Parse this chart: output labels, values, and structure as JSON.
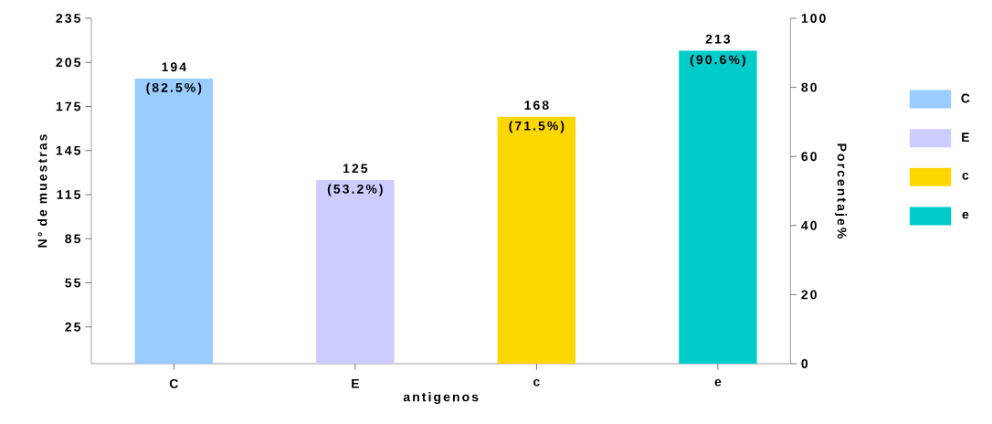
{
  "chart_data": {
    "type": "bar",
    "xlabel": "antigenos",
    "ylabel": "N° de muestras",
    "y2label": "Porcentaje%",
    "categories": [
      "C",
      "E",
      "c",
      "e"
    ],
    "stacked": true,
    "series": [
      {
        "name": "C",
        "color": "#99ccff",
        "values": [
          194,
          null,
          null,
          null
        ],
        "value_labels": [
          "194 (82.5%)",
          null,
          null,
          null
        ]
      },
      {
        "name": "E",
        "color": "#ccccff",
        "values": [
          null,
          125,
          null,
          null
        ],
        "value_labels": [
          null,
          "125 (53.2%)",
          null,
          null
        ]
      },
      {
        "name": "c",
        "color": "#ffd700",
        "values": [
          null,
          null,
          168,
          null
        ],
        "value_labels": [
          null,
          null,
          "168 (71.5%)",
          null
        ]
      },
      {
        "name": "e",
        "color": "#00cccc",
        "values": [
          null,
          null,
          null,
          213
        ],
        "value_labels": [
          null,
          null,
          null,
          "213 (90.6%)"
        ]
      }
    ],
    "ylim": [
      0,
      235
    ],
    "yticks": [
      25,
      55,
      85,
      115,
      145,
      175,
      205,
      235
    ],
    "y2lim": [
      0,
      100
    ],
    "y2ticks": [
      0,
      20,
      40,
      60,
      80,
      100
    ],
    "legend": "right"
  }
}
